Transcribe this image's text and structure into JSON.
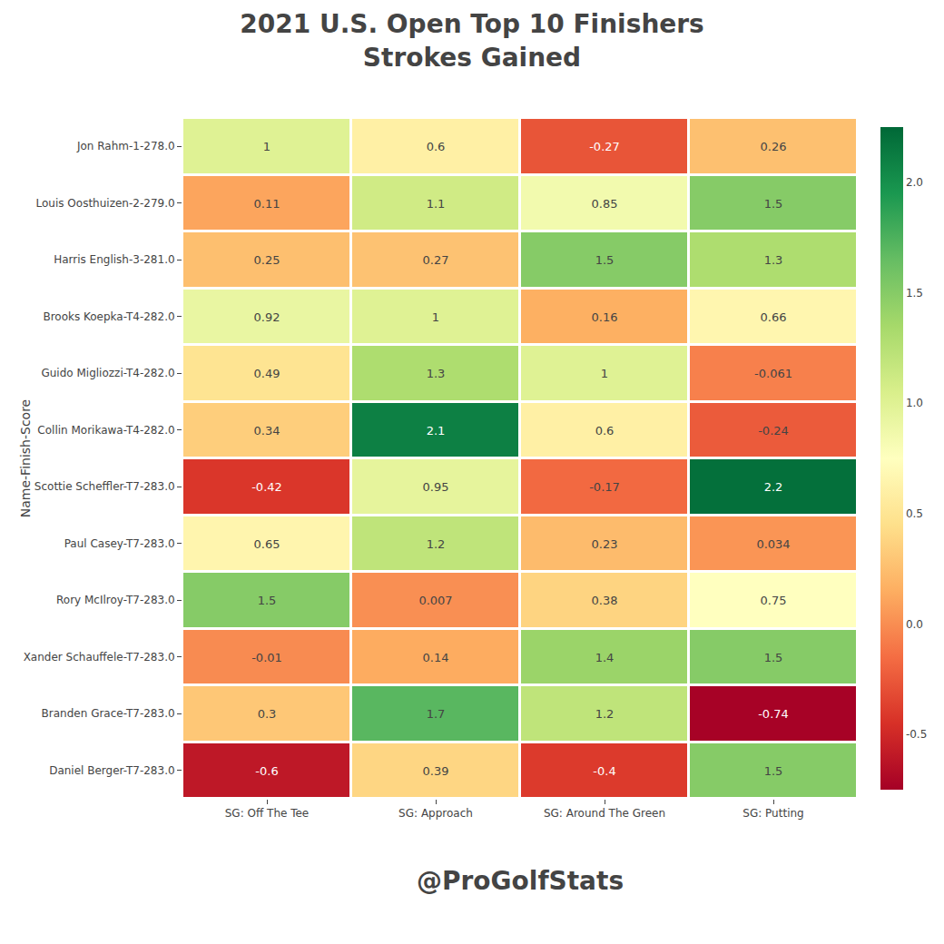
{
  "chart_data": {
    "type": "heatmap",
    "title": "2021 U.S. Open Top 10 Finishers",
    "subtitle": "Strokes Gained",
    "ylabel": "Name-Finish-Score",
    "annotations": [
      "@ProGolfStats"
    ],
    "x": [
      "SG: Off The Tee",
      "SG: Approach",
      "SG: Around The Green",
      "SG: Putting"
    ],
    "y": [
      "Jon Rahm-1-278.0",
      "Louis Oosthuizen-2-279.0",
      "Harris English-3-281.0",
      "Brooks Koepka-T4-282.0",
      "Guido Migliozzi-T4-282.0",
      "Collin Morikawa-T4-282.0",
      "Scottie Scheffler-T7-283.0",
      "Paul Casey-T7-283.0",
      "Rory McIlroy-T7-283.0",
      "Xander Schauffele-T7-283.0",
      "Branden Grace-T7-283.0",
      "Daniel Berger-T7-283.0"
    ],
    "values": [
      [
        1.0,
        0.6,
        -0.27,
        0.26
      ],
      [
        0.11,
        1.1,
        0.85,
        1.5
      ],
      [
        0.25,
        0.27,
        1.5,
        1.3
      ],
      [
        0.92,
        1.0,
        0.16,
        0.66
      ],
      [
        0.49,
        1.3,
        1.0,
        -0.061
      ],
      [
        0.34,
        2.1,
        0.6,
        -0.24
      ],
      [
        -0.42,
        0.95,
        -0.17,
        2.2
      ],
      [
        0.65,
        1.2,
        0.23,
        0.034
      ],
      [
        1.5,
        0.007,
        0.38,
        0.75
      ],
      [
        -0.01,
        0.14,
        1.4,
        1.5
      ],
      [
        0.3,
        1.7,
        1.2,
        -0.74
      ],
      [
        -0.6,
        0.39,
        -0.4,
        1.5
      ]
    ],
    "data_labels": true,
    "color": "RdYlGn",
    "zlim": [
      -0.75,
      2.25
    ],
    "zticks": [
      -0.5,
      {
        "value": 0.0,
        "label": "0.0"
      },
      0.5,
      {
        "value": 1.0,
        "label": "1.0"
      },
      1.5,
      {
        "value": 2.0,
        "label": "2.0"
      }
    ],
    "grid": false
  }
}
